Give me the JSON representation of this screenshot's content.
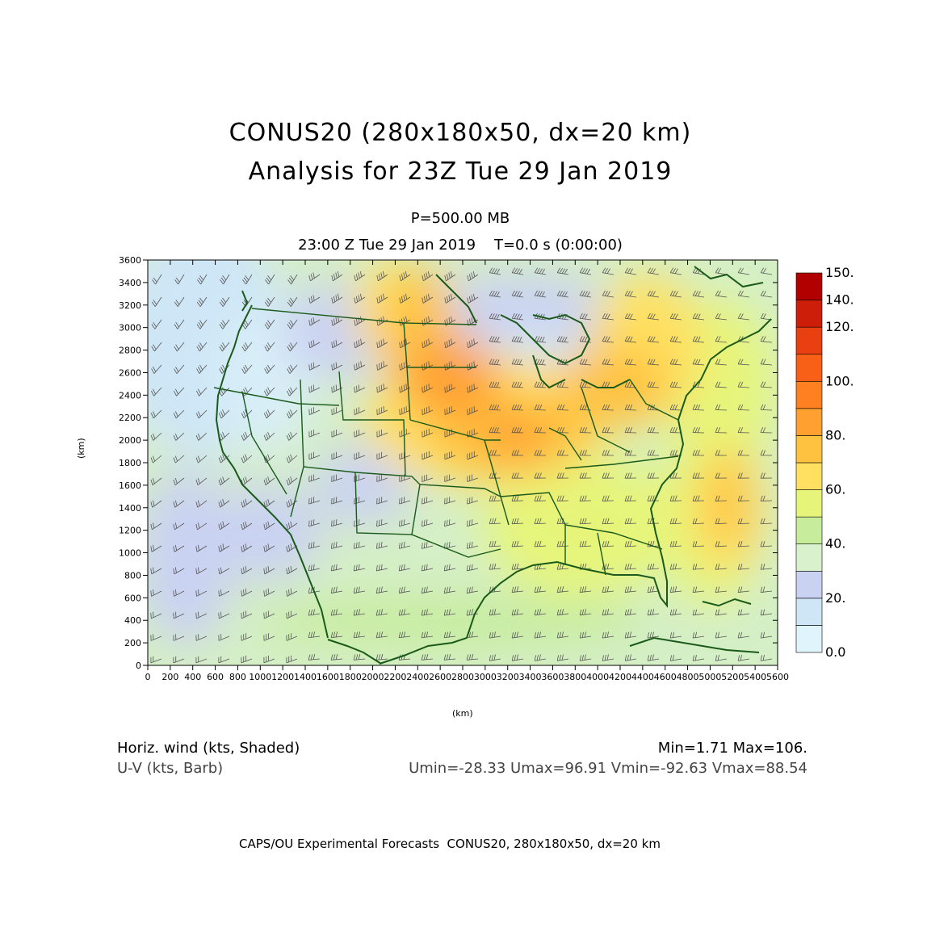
{
  "title": {
    "line1": "CONUS20 (280x180x50, dx=20 km)",
    "line2": "Analysis for 23Z Tue 29 Jan 2019"
  },
  "level": "P=500.00 MB",
  "time": "23:00 Z Tue 29 Jan 2019    T=0.0 s (0:00:00)",
  "axes": {
    "xlabel": "(km)",
    "ylabel": "(km)",
    "xticks": [
      "0",
      "200",
      "400",
      "600",
      "800",
      "1000",
      "1200",
      "1400",
      "1600",
      "1800",
      "2000",
      "2200",
      "2400",
      "2600",
      "2800",
      "3000",
      "3200",
      "3400",
      "3600",
      "3800",
      "4000",
      "4200",
      "4400",
      "4600",
      "4800",
      "5000",
      "5200",
      "5400",
      "5600"
    ],
    "yticks": [
      "0",
      "200",
      "400",
      "600",
      "800",
      "1000",
      "1200",
      "1400",
      "1600",
      "1800",
      "2000",
      "2200",
      "2400",
      "2600",
      "2800",
      "3000",
      "3200",
      "3400",
      "3600"
    ]
  },
  "colorbar": {
    "labels": [
      "0.0",
      "20.",
      "40.",
      "60.",
      "80.",
      "100.",
      "120.",
      "140.",
      "150."
    ],
    "colors": [
      "#e0f4fb",
      "#cfe6f7",
      "#cad2f2",
      "#d9f2cd",
      "#c6ec9c",
      "#e6f57a",
      "#ffe060",
      "#ffc240",
      "#ffa030",
      "#ff8020",
      "#f86018",
      "#e84010",
      "#cc1e08",
      "#b00000"
    ]
  },
  "footer": {
    "line1_left": "Horiz. wind (kts, Shaded)",
    "line2_left": "U-V (kts, Barb)",
    "line1_right": "Min=1.71 Max=106.",
    "line2_right": "Umin=-28.33 Umax=96.91 Vmin=-92.63 Vmax=88.54"
  },
  "credit": "CAPS/OU Experimental Forecasts  CONUS20, 280x180x50, dx=20 km"
}
